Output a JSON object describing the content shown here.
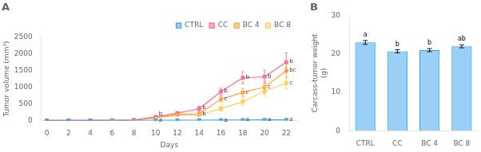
{
  "chart_data": [
    {
      "type": "line",
      "title": "A",
      "x": [
        0,
        2,
        4,
        6,
        8,
        10,
        12,
        14,
        16,
        18,
        20,
        22
      ],
      "xlim": [
        -0.5,
        23
      ],
      "xticks": [
        0,
        2,
        4,
        6,
        8,
        10,
        12,
        14,
        16,
        18,
        20,
        22
      ],
      "ylim": [
        0,
        2500
      ],
      "yticks": [
        0,
        500,
        1000,
        1500,
        2000,
        2500
      ],
      "x_label": "Days",
      "y_label": "Tumor volume (mm³)",
      "marker": "square",
      "grid": false,
      "legend": "upper right",
      "series": [
        {
          "name": "CTRL",
          "values": [
            0,
            0,
            0,
            0,
            0,
            5,
            8,
            10,
            12,
            15,
            18,
            20
          ],
          "errors": [
            0,
            0,
            0,
            1,
            1,
            2,
            3,
            3,
            3,
            4,
            5,
            5
          ]
        },
        {
          "name": "CC",
          "values": [
            0,
            0,
            0,
            5,
            12,
            110,
            220,
            350,
            870,
            1280,
            1310,
            1750
          ],
          "errors": [
            0,
            0,
            0,
            2,
            5,
            20,
            40,
            80,
            100,
            180,
            200,
            280
          ]
        },
        {
          "name": "BC 4",
          "values": [
            0,
            0,
            0,
            5,
            10,
            90,
            180,
            200,
            640,
            840,
            1000,
            1490
          ],
          "errors": [
            0,
            0,
            0,
            2,
            4,
            18,
            35,
            50,
            90,
            120,
            180,
            200
          ]
        },
        {
          "name": "BC 8",
          "values": [
            0,
            0,
            0,
            3,
            8,
            75,
            160,
            165,
            360,
            560,
            880,
            1120
          ],
          "errors": [
            0,
            0,
            0,
            1,
            3,
            15,
            28,
            38,
            75,
            95,
            145,
            175
          ]
        }
      ],
      "annotations": [
        {
          "x": 10,
          "y": 115,
          "text": "b"
        },
        {
          "x": 10,
          "y": 6,
          "text": "a"
        },
        {
          "x": 14,
          "y": 365,
          "text": "b"
        },
        {
          "x": 14,
          "y": 205,
          "text": "b"
        },
        {
          "x": 16,
          "y": 880,
          "text": "b"
        },
        {
          "x": 16,
          "y": 650,
          "text": "c"
        },
        {
          "x": 16,
          "y": 14,
          "text": "a"
        },
        {
          "x": 18,
          "y": 1290,
          "text": "b"
        },
        {
          "x": 18,
          "y": 850,
          "text": "c"
        },
        {
          "x": 18,
          "y": 17,
          "text": "a"
        },
        {
          "x": 20,
          "y": 1320,
          "text": "b"
        },
        {
          "x": 20,
          "y": 1010,
          "text": "c"
        },
        {
          "x": 20,
          "y": 20,
          "text": "a"
        },
        {
          "x": 22,
          "y": 1760,
          "text": "b"
        },
        {
          "x": 22,
          "y": 1505,
          "text": "bc"
        },
        {
          "x": 22,
          "y": 1130,
          "text": "c"
        },
        {
          "x": 22,
          "y": 22,
          "text": "a"
        }
      ]
    },
    {
      "type": "bar",
      "title": "B",
      "categories": [
        "CTRL",
        "CC",
        "BC 4",
        "BC 8"
      ],
      "values": [
        23.0,
        20.7,
        21.0,
        22.0
      ],
      "errors": [
        0.5,
        0.4,
        0.4,
        0.4
      ],
      "ylim": [
        0,
        30
      ],
      "yticks": [
        0,
        10,
        20,
        30
      ],
      "y_label": "Carcass-tumor weight\n(g)",
      "grid": false,
      "annotations": [
        {
          "category": "CTRL",
          "text": "a"
        },
        {
          "category": "CC",
          "text": "b"
        },
        {
          "category": "BC 4",
          "text": "b"
        },
        {
          "category": "BC 8",
          "text": "ab"
        }
      ]
    }
  ]
}
